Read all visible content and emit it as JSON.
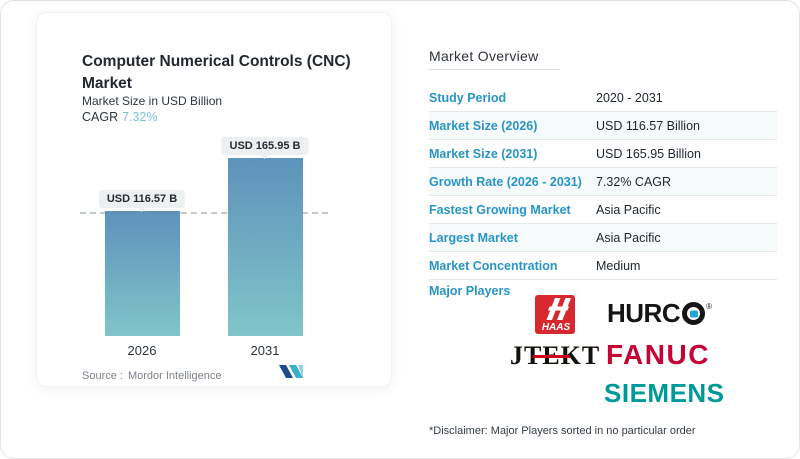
{
  "card": {
    "title": "Computer Numerical Controls (CNC) Market",
    "subtitle": "Market Size in USD Billion",
    "cagr_label": "CAGR",
    "cagr_value": "7.32%",
    "source_label": "Source :",
    "source_value": "Mordor Intelligence"
  },
  "chart_data": {
    "type": "bar",
    "categories": [
      "2026",
      "2031"
    ],
    "values": [
      116.57,
      165.95
    ],
    "bar_labels": [
      "USD 116.57 B",
      "USD 165.95 B"
    ],
    "title": "Computer Numerical Controls (CNC) Market",
    "ylabel": "Market Size in USD Billion",
    "cagr_percent": 7.32,
    "reference_line_value": 116.57,
    "bar_gradient": [
      "#5e92bb",
      "#80c5c9"
    ],
    "legend": "none",
    "grid": "off"
  },
  "overview": {
    "title": "Market Overview",
    "rows": [
      {
        "label": "Study Period",
        "value": "2020 - 2031"
      },
      {
        "label": "Market Size (2026)",
        "value": "USD 116.57 Billion"
      },
      {
        "label": "Market Size (2031)",
        "value": "USD 165.95 Billion"
      },
      {
        "label": "Growth Rate (2026 - 2031)",
        "value": "7.32% CAGR"
      },
      {
        "label": "Fastest Growing Market",
        "value": "Asia Pacific"
      },
      {
        "label": "Largest Market",
        "value": "Asia Pacific"
      },
      {
        "label": "Market Concentration",
        "value": "Medium"
      }
    ],
    "major_players_label": "Major Players",
    "major_players": [
      "HAAS",
      "HURCO",
      "JTEKT",
      "FANUC",
      "SIEMENS"
    ],
    "logos": {
      "haas": "HAAS",
      "hurco_prefix": "HURC",
      "hurco_reg": "®",
      "jtekt": "JTEKT",
      "fanuc": "FANUC",
      "siemens": "SIEMENS"
    },
    "disclaimer": "*Disclaimer: Major Players sorted in no particular order"
  },
  "colors": {
    "accent_blue": "#2795c9",
    "cagr_teal": "#7cc3d8",
    "haas_red": "#d7282f",
    "hurco_teal": "#1fa6d4",
    "jtekt_red": "#d0021b",
    "fanuc_red": "#c40233",
    "siemens_teal": "#009999",
    "mordor_navy": "#1b4c8c",
    "mordor_teal": "#3aafc5"
  }
}
